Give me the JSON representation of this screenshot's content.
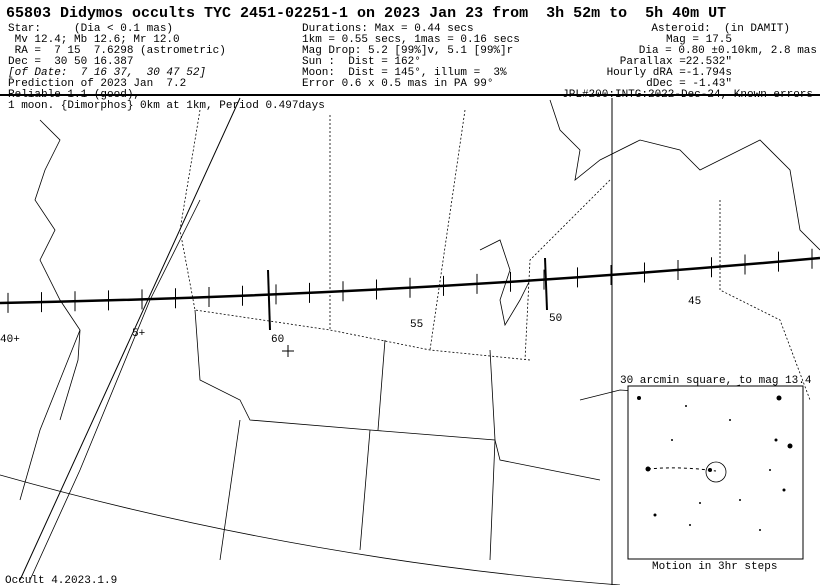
{
  "header": {
    "title": "65803 Didymos occults TYC 2451-02251-1 on 2023 Jan 23 from  3h 52m to  5h 40m UT",
    "left": [
      "Star:     (Dia < 0.1 mas)",
      " Mv 12.4; Mb 12.6; Mr 12.0",
      " RA =  7 15  7.6298 (astrometric)",
      "Dec =  30 50 16.387",
      "[of Date:  7 16 37,  30 47 52]",
      "Prediction of 2023 Jan  7.2",
      "Reliable 1.1 (good),"
    ],
    "middle": [
      "Durations: Max = 0.44 secs",
      "1km = 0.55 secs, 1mas = 0.16 secs",
      "Mag Drop: 5.2 [99%]v, 5.1 [99%]r",
      "Sun :  Dist = 162°",
      "Moon:  Dist = 145°, illum =  3%",
      "Error 0.6 x 0.5 mas in PA 99°"
    ],
    "right": [
      "Asteroid:  (in DAMIT)",
      "Mag = 17.5",
      "Dia = 0.80 ±0.10km, 2.8 mas",
      "Parallax =22.532\"",
      "Hourly dRA =-1.794s",
      "dDec = -1.43\""
    ],
    "ephemeris": "JPL#200:INTG:2022-Dec-24, Known errors"
  },
  "map": {
    "moon_note": "1 moon. {Dimorphos} 0km at 1km, Period 0.497days",
    "path_labels": [
      "40+",
      "5+",
      "60",
      "55",
      "50",
      "45"
    ],
    "inset_title": "30 arcmin square, to mag 13.4",
    "inset_caption": "Motion in 3hr steps",
    "footer": "Occult 4.2023.1.9"
  }
}
